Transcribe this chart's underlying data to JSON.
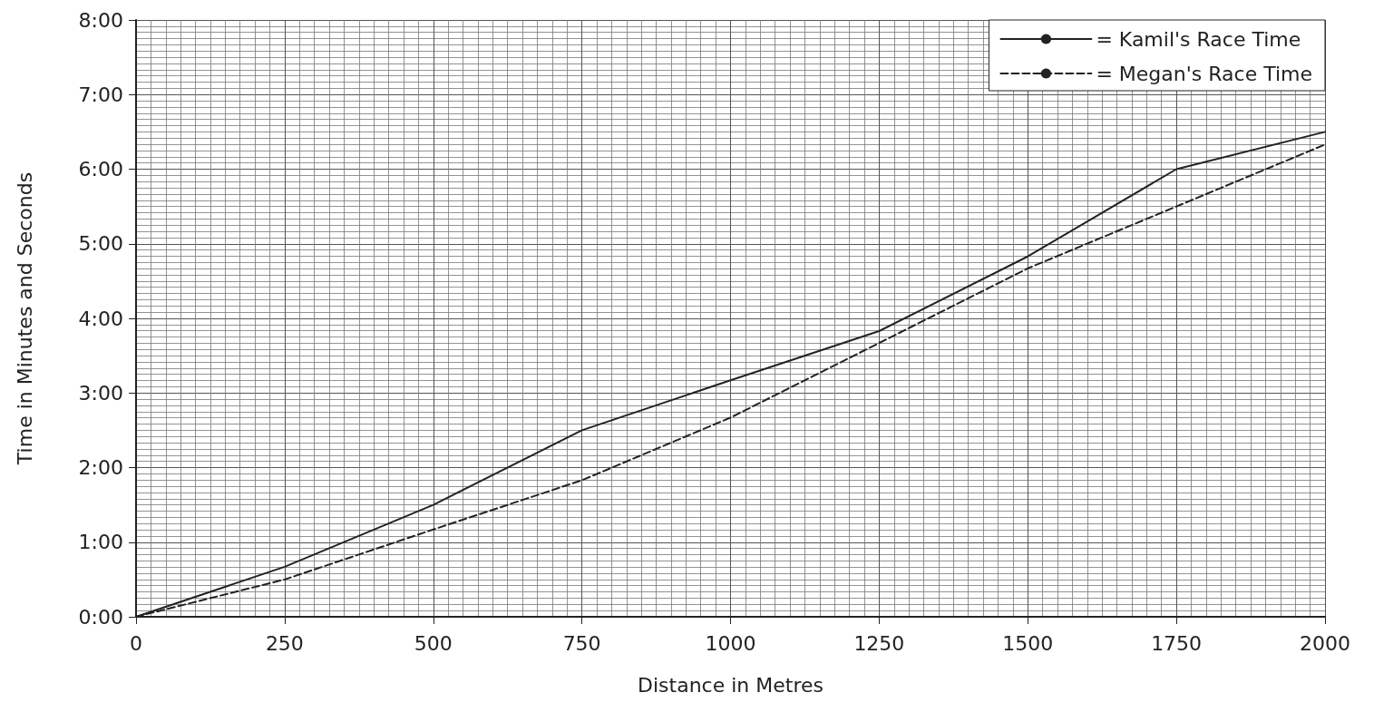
{
  "chart_data": {
    "type": "line",
    "xlabel": "Distance in Metres",
    "ylabel": "Time in Minutes and Seconds",
    "x": [
      0,
      250,
      500,
      750,
      1000,
      1250,
      1500,
      1750,
      2000
    ],
    "series": [
      {
        "name": "= Kamil's Race Time",
        "color": "#222222",
        "line_style": "solid",
        "values": [
          0,
          0.67,
          1.5,
          2.5,
          3.17,
          3.83,
          4.83,
          6,
          6.5
        ]
      },
      {
        "name": "= Megan's Race Time",
        "color": "#222222",
        "line_style": "dashed",
        "values": [
          0,
          0.5,
          1.17,
          1.83,
          2.67,
          3.67,
          4.67,
          5.5,
          6.33
        ]
      }
    ],
    "xlim": [
      0,
      2000
    ],
    "xticks": [
      0,
      250,
      500,
      750,
      1000,
      1250,
      1500,
      1750,
      2000
    ],
    "ylim": [
      0,
      8
    ],
    "yticks": [
      {
        "value": 0,
        "label": "0:00"
      },
      {
        "value": 1,
        "label": "1:00"
      },
      {
        "value": 2,
        "label": "2:00"
      },
      {
        "value": 3,
        "label": "3:00"
      },
      {
        "value": 4,
        "label": "4:00"
      },
      {
        "value": 5,
        "label": "5:00"
      },
      {
        "value": 6,
        "label": "6:00"
      },
      {
        "value": 7,
        "label": "7:00"
      },
      {
        "value": 8,
        "label": "8:00"
      }
    ],
    "grid": true,
    "legend": "top right",
    "marker": "none"
  }
}
